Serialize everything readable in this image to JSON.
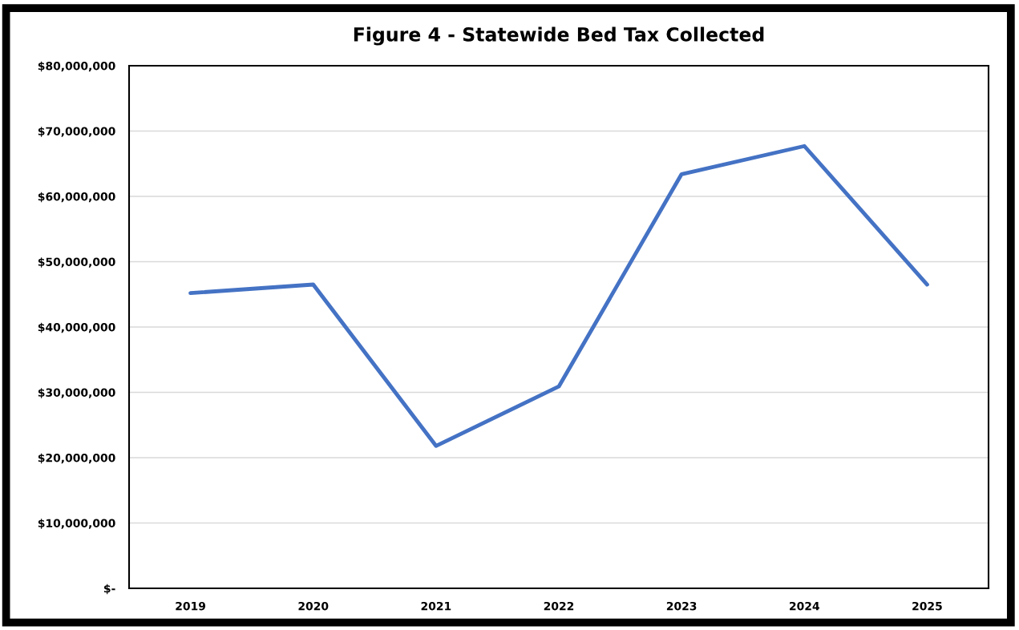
{
  "chart_data": {
    "type": "line",
    "title": "Figure 4 - Statewide Bed Tax Collected",
    "categories": [
      "2019",
      "2020",
      "2021",
      "2022",
      "2023",
      "2024",
      "2025"
    ],
    "series": [
      {
        "color": "#4472c4",
        "values": [
          45200000,
          46500000,
          21800000,
          30900000,
          63400000,
          67700000,
          46500000
        ]
      }
    ],
    "ylim": [
      0,
      80000000
    ],
    "yticks": [
      {
        "value": 0,
        "label": "$-"
      },
      {
        "value": 10000000,
        "label": "$10,000,000"
      },
      {
        "value": 20000000,
        "label": "$20,000,000"
      },
      {
        "value": 30000000,
        "label": "$30,000,000"
      },
      {
        "value": 40000000,
        "label": "$40,000,000"
      },
      {
        "value": 50000000,
        "label": "$50,000,000"
      },
      {
        "value": 60000000,
        "label": "$60,000,000"
      },
      {
        "value": 70000000,
        "label": "$70,000,000"
      },
      {
        "value": 80000000,
        "label": "$80,000,000"
      }
    ],
    "grid": "y",
    "marker": "none",
    "line_style": "solid"
  }
}
